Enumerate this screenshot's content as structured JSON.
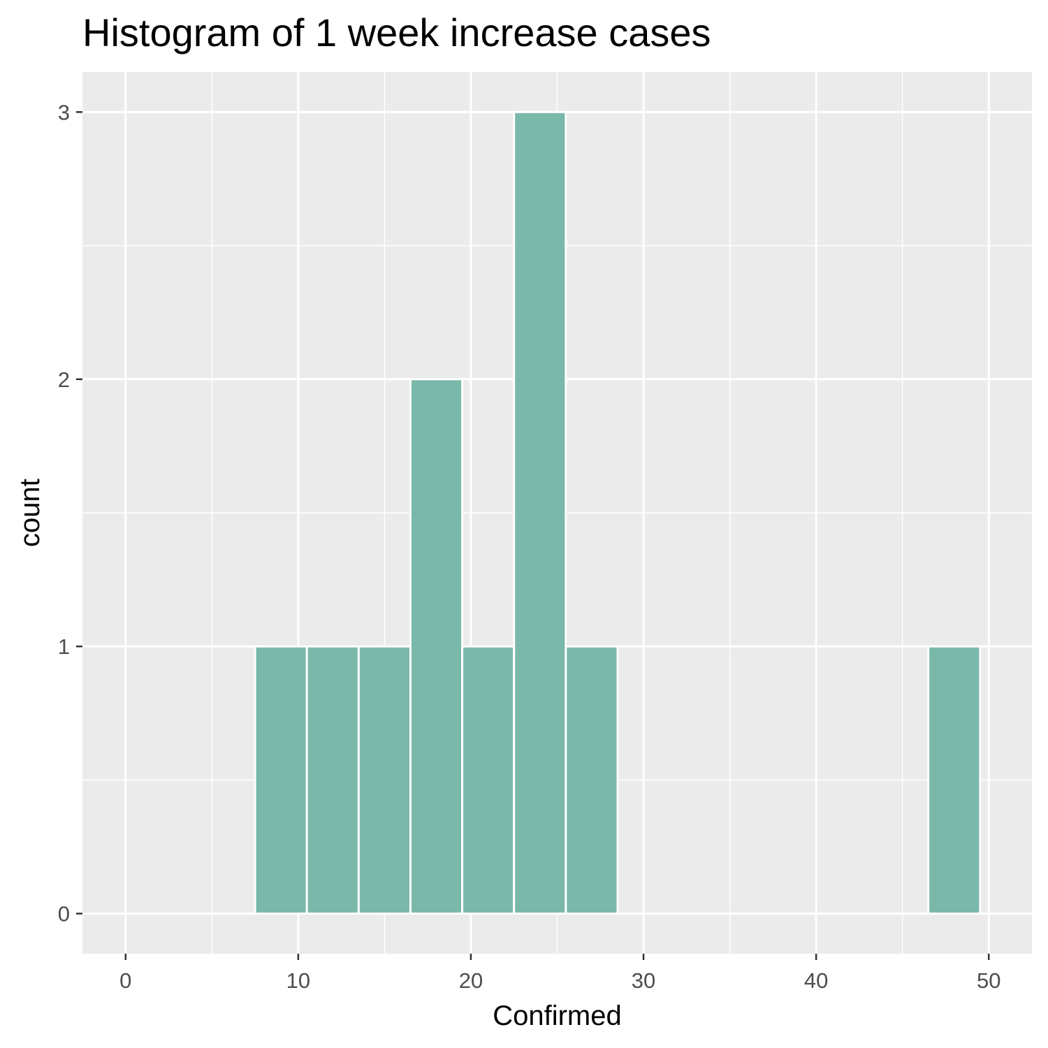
{
  "chart_data": {
    "type": "bar",
    "title": "Histogram of 1 week increase cases",
    "xlabel": "Confirmed",
    "ylabel": "count",
    "xlim": [
      -2.5,
      52.5
    ],
    "ylim": [
      -0.15,
      3.15
    ],
    "x_ticks": [
      0,
      10,
      20,
      30,
      40,
      50
    ],
    "y_ticks": [
      0,
      1,
      2,
      3
    ],
    "bin_width": 3,
    "bins": [
      {
        "x": 3,
        "count": 0
      },
      {
        "x": 6,
        "count": 0
      },
      {
        "x": 9,
        "count": 1
      },
      {
        "x": 12,
        "count": 1
      },
      {
        "x": 15,
        "count": 1
      },
      {
        "x": 18,
        "count": 2
      },
      {
        "x": 21,
        "count": 1
      },
      {
        "x": 24,
        "count": 3
      },
      {
        "x": 27,
        "count": 1
      },
      {
        "x": 30,
        "count": 0
      },
      {
        "x": 33,
        "count": 0
      },
      {
        "x": 36,
        "count": 0
      },
      {
        "x": 39,
        "count": 0
      },
      {
        "x": 42,
        "count": 0
      },
      {
        "x": 45,
        "count": 0
      },
      {
        "x": 48,
        "count": 1
      }
    ],
    "grid": true,
    "colors": {
      "bar_fill": "#7ab8aa",
      "panel_background": "#ebebeb",
      "grid": "#ffffff"
    }
  }
}
